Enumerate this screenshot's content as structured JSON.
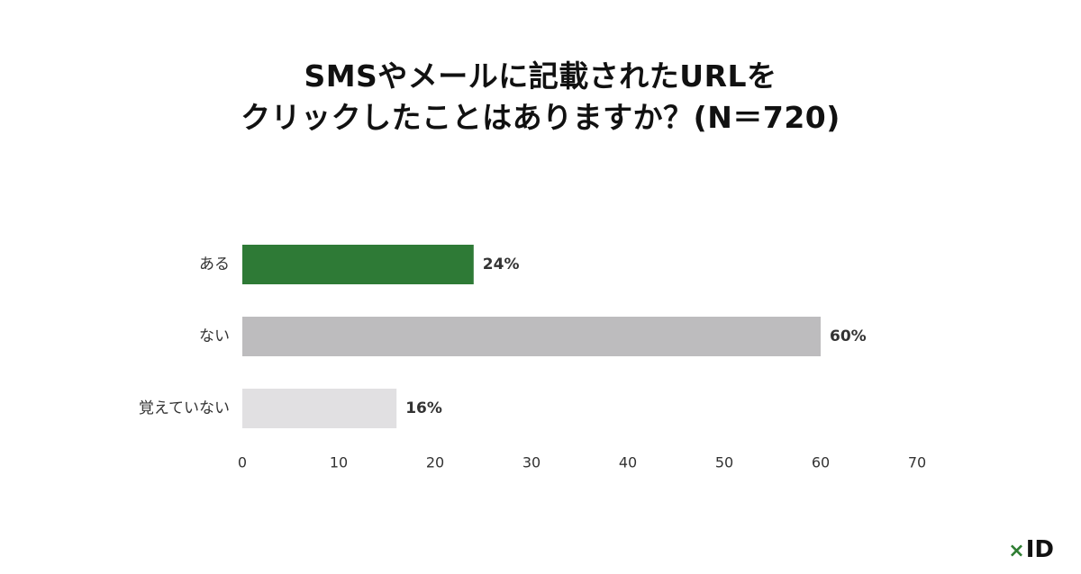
{
  "chart_data": {
    "type": "bar",
    "orientation": "horizontal",
    "title_lines": [
      "SMSやメールに記載されたURLを",
      "クリックしたことはありますか？(N＝720)"
    ],
    "categories": [
      "ある",
      "ない",
      "覚えていない"
    ],
    "values": [
      24,
      60,
      16
    ],
    "value_labels": [
      "24%",
      "60%",
      "16%"
    ],
    "colors": [
      "#2e7a36",
      "#bdbcbe",
      "#e1e0e2"
    ],
    "xlim": [
      0,
      70
    ],
    "xticks": [
      0,
      10,
      20,
      30,
      40,
      50,
      60,
      70
    ],
    "grid": false,
    "legend": "none"
  },
  "logo": {
    "mark": "×",
    "text": "ID"
  }
}
